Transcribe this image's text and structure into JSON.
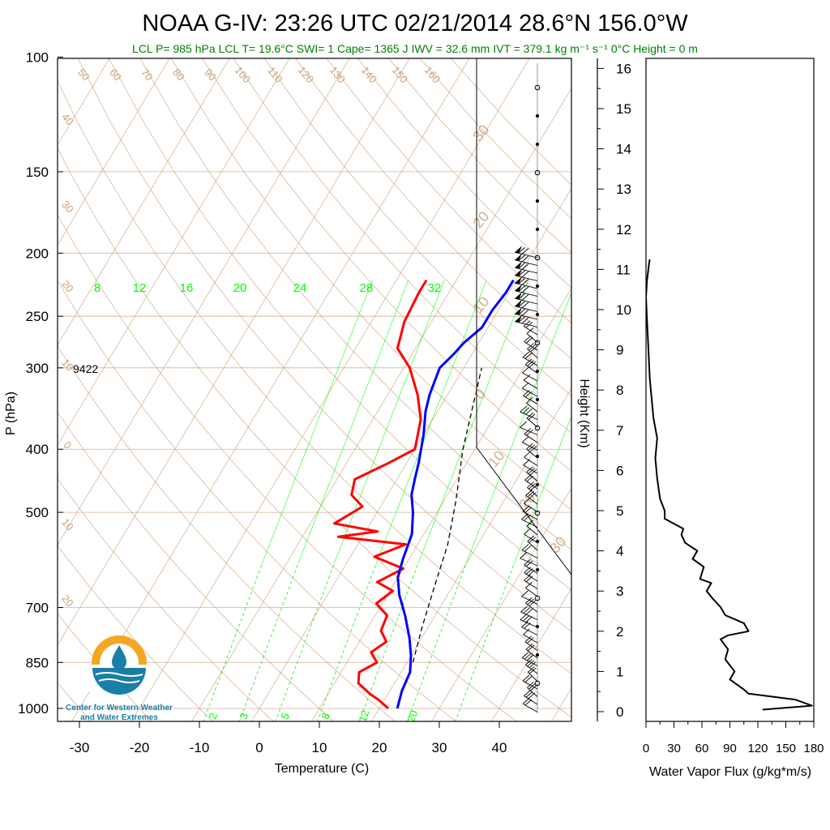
{
  "header": {
    "title": "NOAA G-IV: 23:26 UTC 02/21/2014  28.6°N 156.0°W",
    "info": "LCL P= 985 hPa  LCL T= 19.6°C  SWI= 1  Cape= 1365 J  IWV = 32.6 mm  IVT = 379.1 kg m⁻¹ s⁻¹  0°C Height = 0 m"
  },
  "logo": {
    "line1": "Center for Western Weather",
    "line2": "and Water Extremes"
  },
  "colors": {
    "temperature": "#ff0000",
    "dewpoint": "#0000ff",
    "adiabat": "#c8a07a",
    "mixing_ratio": "#00ff00",
    "header_info": "#008000",
    "logo_orange": "#f5a623",
    "logo_blue": "#1a7ea8"
  },
  "chart_data": [
    {
      "type": "line",
      "name": "skew-t",
      "xlabel": "Temperature (C)",
      "ylabel": "P (hPa)",
      "xlim": [
        -34,
        50
      ],
      "ylim": [
        1050,
        100
      ],
      "x_ticks": [
        "-30",
        "-20",
        "-10",
        "0",
        "10",
        "20",
        "30",
        "40"
      ],
      "y_ticks": [
        "100",
        "150",
        "200",
        "250",
        "300",
        "400",
        "500",
        "700",
        "850",
        "1000"
      ],
      "height_annotation": "9422",
      "adiabat_labels_top": [
        "50",
        "60",
        "70",
        "80",
        "90",
        "100",
        "110",
        "120",
        "130",
        "140",
        "150",
        "160"
      ],
      "adiabat_labels_left": [
        "40",
        "30",
        "20",
        "10",
        "0",
        "10",
        "20"
      ],
      "adiabat_labels_right": [
        "30",
        "20",
        "10",
        "0",
        "10",
        "20",
        "30"
      ],
      "mixing_ratio_labels_top": [
        "8",
        "12",
        "16",
        "20",
        "24",
        "28",
        "32"
      ],
      "mixing_ratio_labels_bottom": [
        "2",
        "3",
        "5",
        "8",
        "12",
        "20"
      ],
      "series": [
        {
          "points": [
            [
              21.5,
              1000
            ],
            [
              19,
              970
            ],
            [
              17,
              950
            ],
            [
              14,
              915
            ],
            [
              13,
              880
            ],
            [
              15,
              850
            ],
            [
              13,
              820
            ],
            [
              14.5,
              790
            ],
            [
              12.5,
              760
            ],
            [
              12,
              720
            ],
            [
              9,
              690
            ],
            [
              10.5,
              660
            ],
            [
              7,
              640
            ],
            [
              10,
              610
            ],
            [
              4,
              585
            ],
            [
              8,
              560
            ],
            [
              -4,
              545
            ],
            [
              2,
              535
            ],
            [
              -6,
              520
            ],
            [
              -3,
              490
            ],
            [
              -6,
              470
            ],
            [
              -7,
              445
            ],
            [
              -3,
              420
            ],
            [
              0,
              400
            ],
            [
              -2,
              360
            ],
            [
              -5,
              330
            ],
            [
              -9,
              300
            ],
            [
              -13,
              280
            ],
            [
              -14.5,
              255
            ],
            [
              -15,
              230
            ],
            [
              -15,
              220
            ]
          ]
        },
        {
          "points": [
            [
              23,
              1000
            ],
            [
              22,
              940
            ],
            [
              21.5,
              880
            ],
            [
              20,
              830
            ],
            [
              18,
              780
            ],
            [
              15,
              720
            ],
            [
              12,
              670
            ],
            [
              10,
              630
            ],
            [
              9,
              590
            ],
            [
              8,
              540
            ],
            [
              6,
              500
            ],
            [
              4,
              470
            ],
            [
              3,
              445
            ],
            [
              2,
              420
            ],
            [
              0,
              380
            ],
            [
              -2,
              350
            ],
            [
              -3,
              330
            ],
            [
              -4,
              300
            ],
            [
              -3,
              285
            ],
            [
              -2.5,
              275
            ],
            [
              -1,
              260
            ],
            [
              -1,
              245
            ],
            [
              -0.5,
              230
            ],
            [
              -0.5,
              220
            ]
          ]
        },
        {
          "points": [
            [
              21,
              850
            ],
            [
              19,
              750
            ],
            [
              17,
              650
            ],
            [
              15,
              560
            ],
            [
              12,
              480
            ],
            [
              8,
              400
            ],
            [
              3,
              300
            ]
          ]
        }
      ]
    },
    {
      "type": "line",
      "name": "water-vapor-flux",
      "xlabel": "Water Vapor Flux (g/kg*m/s)",
      "ylabel": "Height (Km)",
      "xlim": [
        0,
        180
      ],
      "ylim": [
        0,
        16
      ],
      "x_ticks": [
        "0",
        "30",
        "60",
        "90",
        "120",
        "150",
        "180"
      ],
      "y_ticks": [
        "0",
        "1",
        "2",
        "3",
        "4",
        "5",
        "6",
        "7",
        "8",
        "9",
        "10",
        "11",
        "12",
        "13",
        "14",
        "15",
        "16"
      ],
      "series": [
        {
          "points": [
            [
              125,
              0.05
            ],
            [
              178,
              0.15
            ],
            [
              160,
              0.3
            ],
            [
              110,
              0.45
            ],
            [
              105,
              0.55
            ],
            [
              90,
              0.8
            ],
            [
              95,
              1.0
            ],
            [
              85,
              1.3
            ],
            [
              88,
              1.55
            ],
            [
              80,
              1.8
            ],
            [
              88,
              1.9
            ],
            [
              110,
              2.0
            ],
            [
              105,
              2.2
            ],
            [
              85,
              2.4
            ],
            [
              80,
              2.6
            ],
            [
              72,
              2.8
            ],
            [
              65,
              3.0
            ],
            [
              70,
              3.2
            ],
            [
              58,
              3.3
            ],
            [
              62,
              3.6
            ],
            [
              50,
              3.8
            ],
            [
              55,
              4.0
            ],
            [
              42,
              4.2
            ],
            [
              38,
              4.4
            ],
            [
              40,
              4.55
            ],
            [
              32,
              4.65
            ],
            [
              20,
              4.8
            ],
            [
              20,
              5.0
            ],
            [
              15,
              5.3
            ],
            [
              12,
              5.8
            ],
            [
              10,
              6.3
            ],
            [
              12,
              6.8
            ],
            [
              8,
              7.3
            ],
            [
              6,
              7.8
            ],
            [
              4,
              8.3
            ],
            [
              3,
              8.8
            ],
            [
              2,
              9.3
            ],
            [
              1,
              9.8
            ],
            [
              0,
              10.3
            ],
            [
              1,
              10.7
            ],
            [
              3,
              11.1
            ],
            [
              4,
              11.25
            ]
          ]
        }
      ]
    }
  ]
}
